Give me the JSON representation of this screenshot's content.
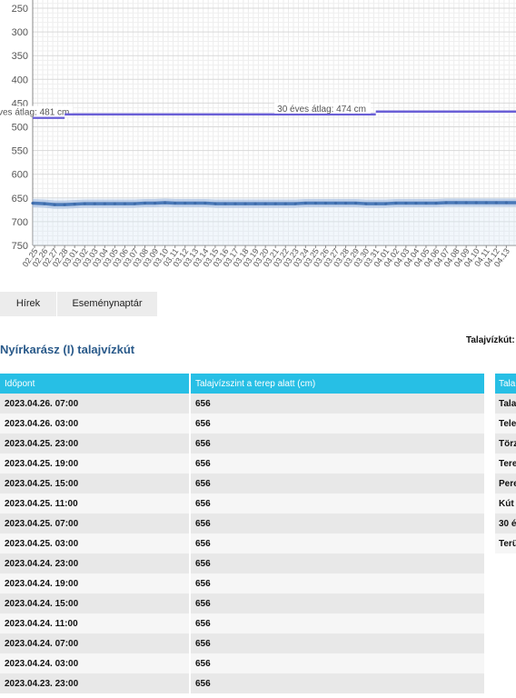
{
  "chart_data": {
    "type": "line",
    "y_ticks": [
      "250",
      "300",
      "350",
      "400",
      "450",
      "500",
      "550",
      "600",
      "650",
      "700",
      "750"
    ],
    "ylim": [
      250,
      750
    ],
    "y_inverted": true,
    "grid": true,
    "x_ticks": [
      "02.25",
      "02.26",
      "02.27",
      "02.28",
      "03.01",
      "03.02",
      "03.03",
      "03.04",
      "03.05",
      "03.06",
      "03.07",
      "03.08",
      "03.09",
      "03.10",
      "03.11",
      "03.12",
      "03.13",
      "03.14",
      "03.15",
      "03.16",
      "03.17",
      "03.18",
      "03.19",
      "03.20",
      "03.21",
      "03.22",
      "03.23",
      "03.24",
      "03.25",
      "03.26",
      "03.27",
      "03.28",
      "03.29",
      "03.30",
      "03.31",
      "04.01",
      "04.02",
      "04.03",
      "04.04",
      "04.05",
      "04.06",
      "04.07",
      "04.08",
      "04.09",
      "04.10",
      "04.11",
      "04.12",
      "04.13"
    ],
    "series": [
      {
        "values": [
          661,
          662,
          664,
          664,
          663,
          662,
          662,
          662,
          662,
          662,
          662,
          661,
          661,
          660,
          661,
          661,
          661,
          661,
          662,
          662,
          662,
          662,
          662,
          662,
          662,
          662,
          662,
          661,
          661,
          661,
          661,
          661,
          661,
          662,
          662,
          662,
          661,
          661,
          661,
          661,
          661,
          660,
          660,
          660,
          660,
          660,
          660,
          660
        ]
      }
    ],
    "reference_lines": [
      {
        "label": "ves átlag: 481 cm",
        "value": 481,
        "x_start": "02.25",
        "x_end": "02.28"
      },
      {
        "label": "30 éves átlag: 474 cm",
        "value": 474,
        "x_start": "02.28",
        "x_end": "03.31"
      },
      {
        "label": "",
        "value": 468,
        "x_start": "03.31",
        "x_end": "04.13"
      }
    ],
    "colors": {
      "series": "#4a79b8",
      "reference": "#6a5fd6",
      "band": "#dbe7f5"
    }
  },
  "tabs": [
    {
      "label": "Hírek"
    },
    {
      "label": "Eseménynaptár"
    }
  ],
  "right_label": "Talajvízkút:",
  "page_title": "Nyírkarász (I) talajvízkút",
  "table": {
    "headers": [
      "Időpont",
      "Talajvízszint a terep alatt (cm)"
    ],
    "rows": [
      [
        "2023.04.26. 07:00",
        "656"
      ],
      [
        "2023.04.26. 03:00",
        "656"
      ],
      [
        "2023.04.25. 23:00",
        "656"
      ],
      [
        "2023.04.25. 19:00",
        "656"
      ],
      [
        "2023.04.25. 15:00",
        "656"
      ],
      [
        "2023.04.25. 11:00",
        "656"
      ],
      [
        "2023.04.25. 07:00",
        "656"
      ],
      [
        "2023.04.25. 03:00",
        "656"
      ],
      [
        "2023.04.24. 23:00",
        "656"
      ],
      [
        "2023.04.24. 19:00",
        "656"
      ],
      [
        "2023.04.24. 15:00",
        "656"
      ],
      [
        "2023.04.24. 11:00",
        "656"
      ],
      [
        "2023.04.24. 07:00",
        "656"
      ],
      [
        "2023.04.24. 03:00",
        "656"
      ],
      [
        "2023.04.23. 23:00",
        "656"
      ]
    ]
  },
  "side_table": {
    "header": "Tala",
    "rows": [
      "Tala",
      "Tele",
      "Törz",
      "Tere",
      "Pere",
      "Kút",
      "30 é",
      "Terü"
    ]
  }
}
